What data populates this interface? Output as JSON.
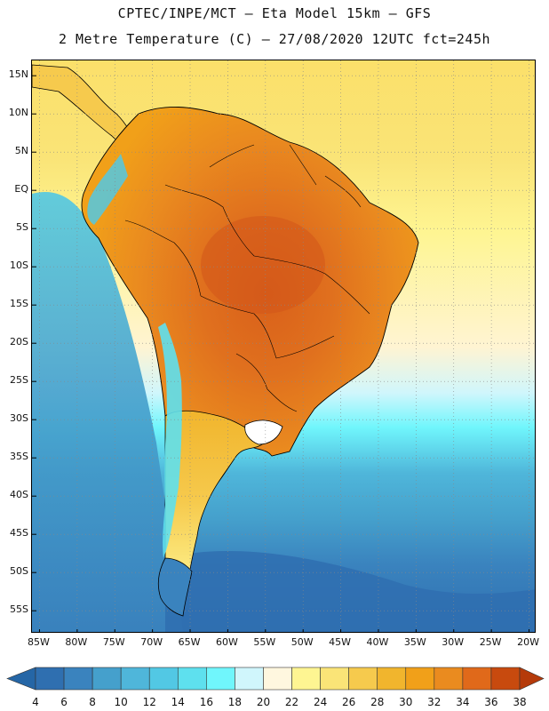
{
  "title": {
    "line1": "CPTEC/INPE/MCT –  Eta Model 15km – GFS",
    "line2": "2 Metre Temperature (C) – 27/08/2020 12UTC fct=245h"
  },
  "map": {
    "extent": {
      "lon_min": -86,
      "lon_max": -19,
      "lat_min": -58,
      "lat_max": 17
    },
    "lat_ticks": [
      {
        "value": 15,
        "label": "15N"
      },
      {
        "value": 10,
        "label": "10N"
      },
      {
        "value": 5,
        "label": "5N"
      },
      {
        "value": 0,
        "label": "EQ"
      },
      {
        "value": -5,
        "label": "5S"
      },
      {
        "value": -10,
        "label": "10S"
      },
      {
        "value": -15,
        "label": "15S"
      },
      {
        "value": -20,
        "label": "20S"
      },
      {
        "value": -25,
        "label": "25S"
      },
      {
        "value": -30,
        "label": "30S"
      },
      {
        "value": -35,
        "label": "35S"
      },
      {
        "value": -40,
        "label": "40S"
      },
      {
        "value": -45,
        "label": "45S"
      },
      {
        "value": -50,
        "label": "50S"
      },
      {
        "value": -55,
        "label": "55S"
      }
    ],
    "lon_ticks": [
      {
        "value": -85,
        "label": "85W"
      },
      {
        "value": -80,
        "label": "80W"
      },
      {
        "value": -75,
        "label": "75W"
      },
      {
        "value": -70,
        "label": "70W"
      },
      {
        "value": -65,
        "label": "65W"
      },
      {
        "value": -60,
        "label": "60W"
      },
      {
        "value": -55,
        "label": "55W"
      },
      {
        "value": -50,
        "label": "50W"
      },
      {
        "value": -45,
        "label": "45W"
      },
      {
        "value": -40,
        "label": "40W"
      },
      {
        "value": -35,
        "label": "35W"
      },
      {
        "value": -30,
        "label": "30W"
      },
      {
        "value": -25,
        "label": "25W"
      },
      {
        "value": -20,
        "label": "20W"
      }
    ]
  },
  "colorbar": {
    "levels": [
      4,
      6,
      8,
      10,
      12,
      14,
      16,
      18,
      20,
      22,
      24,
      26,
      28,
      30,
      32,
      34,
      36,
      38
    ],
    "colors": [
      "#2f6fb0",
      "#3a83be",
      "#45a0cc",
      "#4fb6da",
      "#52c8e4",
      "#5ee0ee",
      "#70f6fc",
      "#d0f6fc",
      "#fff7df",
      "#fef592",
      "#fae477",
      "#f6ca4d",
      "#f1b52d",
      "#f1a019",
      "#ea8b1f",
      "#e0691a",
      "#c84a0e"
    ],
    "low_color": "#2566a6",
    "high_color": "#b53a0a"
  }
}
